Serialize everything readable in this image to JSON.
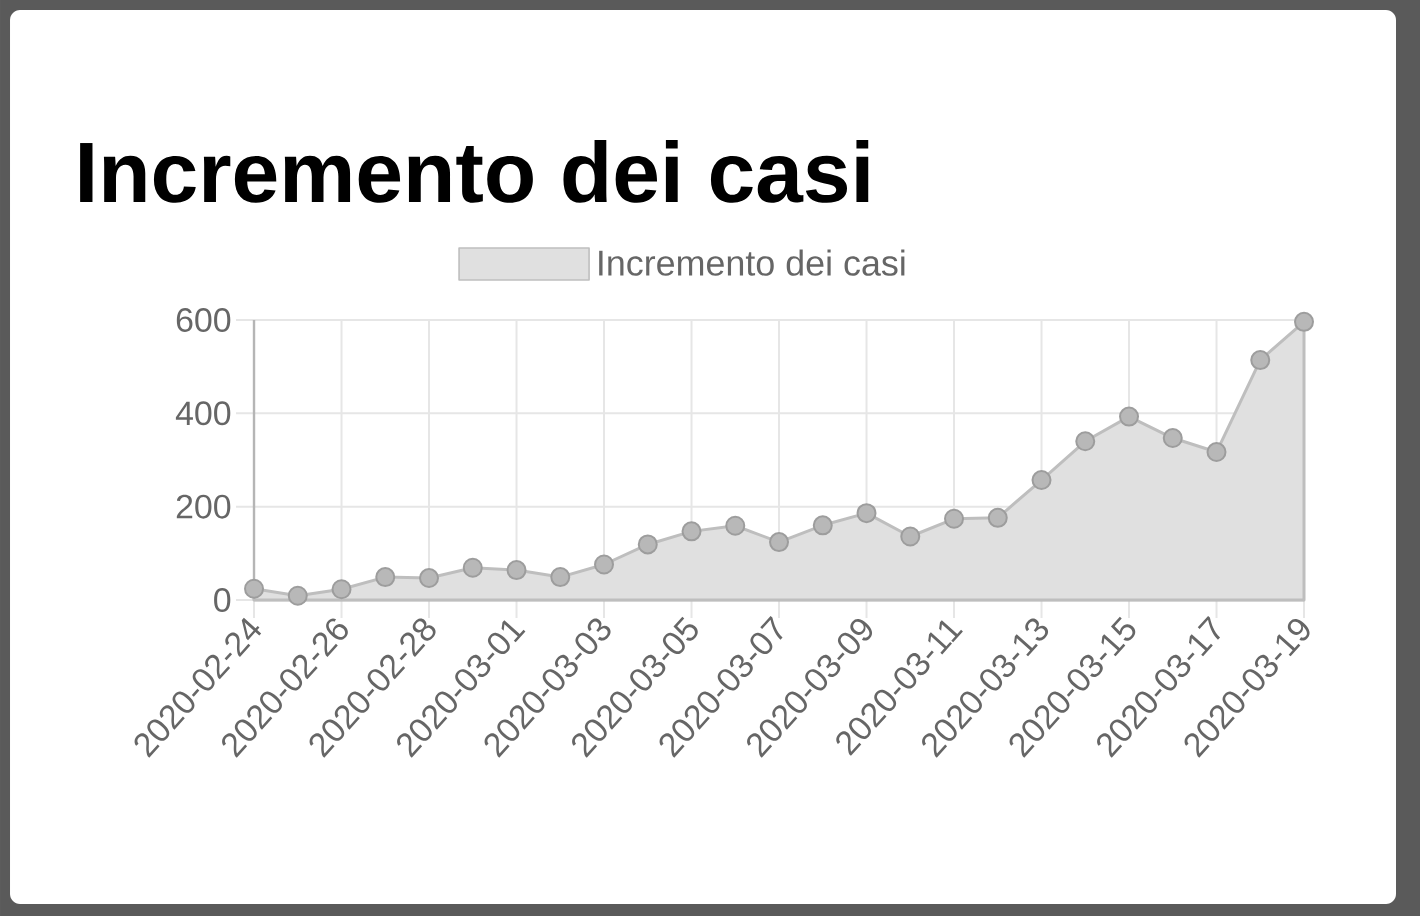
{
  "chart_data": {
    "type": "area",
    "title": "Incremento dei casi",
    "x": [
      "2020-02-24",
      "2020-02-25",
      "2020-02-26",
      "2020-02-27",
      "2020-02-28",
      "2020-02-29",
      "2020-03-01",
      "2020-03-02",
      "2020-03-03",
      "2020-03-04",
      "2020-03-05",
      "2020-03-06",
      "2020-03-07",
      "2020-03-08",
      "2020-03-09",
      "2020-03-10",
      "2020-03-11",
      "2020-03-12",
      "2020-03-13",
      "2020-03-14",
      "2020-03-15",
      "2020-03-16",
      "2020-03-17",
      "2020-03-18",
      "2020-03-19"
    ],
    "series": [
      {
        "name": "Incremento dei casi",
        "color": "#e0e0e0",
        "values": [
          24,
          9,
          23,
          49,
          47,
          69,
          64,
          49,
          76,
          119,
          147,
          159,
          124,
          160,
          186,
          136,
          174,
          176,
          257,
          340,
          393,
          347,
          317,
          514,
          596
        ]
      }
    ],
    "xlim": [
      "2020-02-24",
      "2020-03-19"
    ],
    "xticks": [
      "2020-02-24",
      "2020-02-26",
      "2020-02-28",
      "2020-03-01",
      "2020-03-03",
      "2020-03-05",
      "2020-03-07",
      "2020-03-09",
      "2020-03-11",
      "2020-03-13",
      "2020-03-15",
      "2020-03-17",
      "2020-03-19"
    ],
    "ylim": [
      0,
      600
    ],
    "yticks": [
      0,
      200,
      400,
      600
    ],
    "grid": true,
    "legend": "top",
    "marker": "circle",
    "line_style": "solid"
  }
}
